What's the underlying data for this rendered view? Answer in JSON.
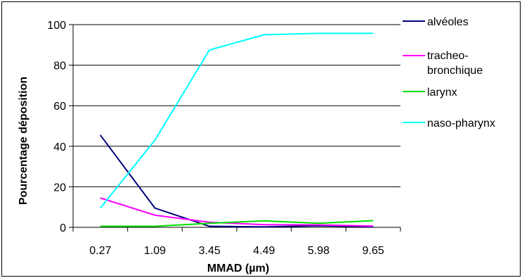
{
  "chart_data": {
    "type": "line",
    "categories": [
      "0.27",
      "1.09",
      "3.45",
      "4.49",
      "5.98",
      "9.65"
    ],
    "series": [
      {
        "name": "alvéoles",
        "color": "#000080",
        "values": [
          45.5,
          9.5,
          0.5,
          0.2,
          0.8,
          0.3
        ]
      },
      {
        "name": "tracheo-bronchique",
        "color": "#ff00ff",
        "values": [
          14.5,
          6,
          2.5,
          1.3,
          1.2,
          0.6
        ]
      },
      {
        "name": "larynx",
        "color": "#00dd00",
        "values": [
          0.5,
          0.5,
          2,
          3.2,
          2,
          3.3
        ]
      },
      {
        "name": "naso-pharynx",
        "color": "#00ffff",
        "values": [
          9.5,
          43,
          87.5,
          95,
          95.7,
          95.7
        ]
      }
    ],
    "xlabel": "MMAD (µm)",
    "ylabel": "Pourcentage déposition",
    "ylim": [
      0,
      100
    ],
    "yticks": [
      "0",
      "20",
      "40",
      "60",
      "80",
      "100"
    ],
    "grid": true,
    "legend_position": "right"
  }
}
